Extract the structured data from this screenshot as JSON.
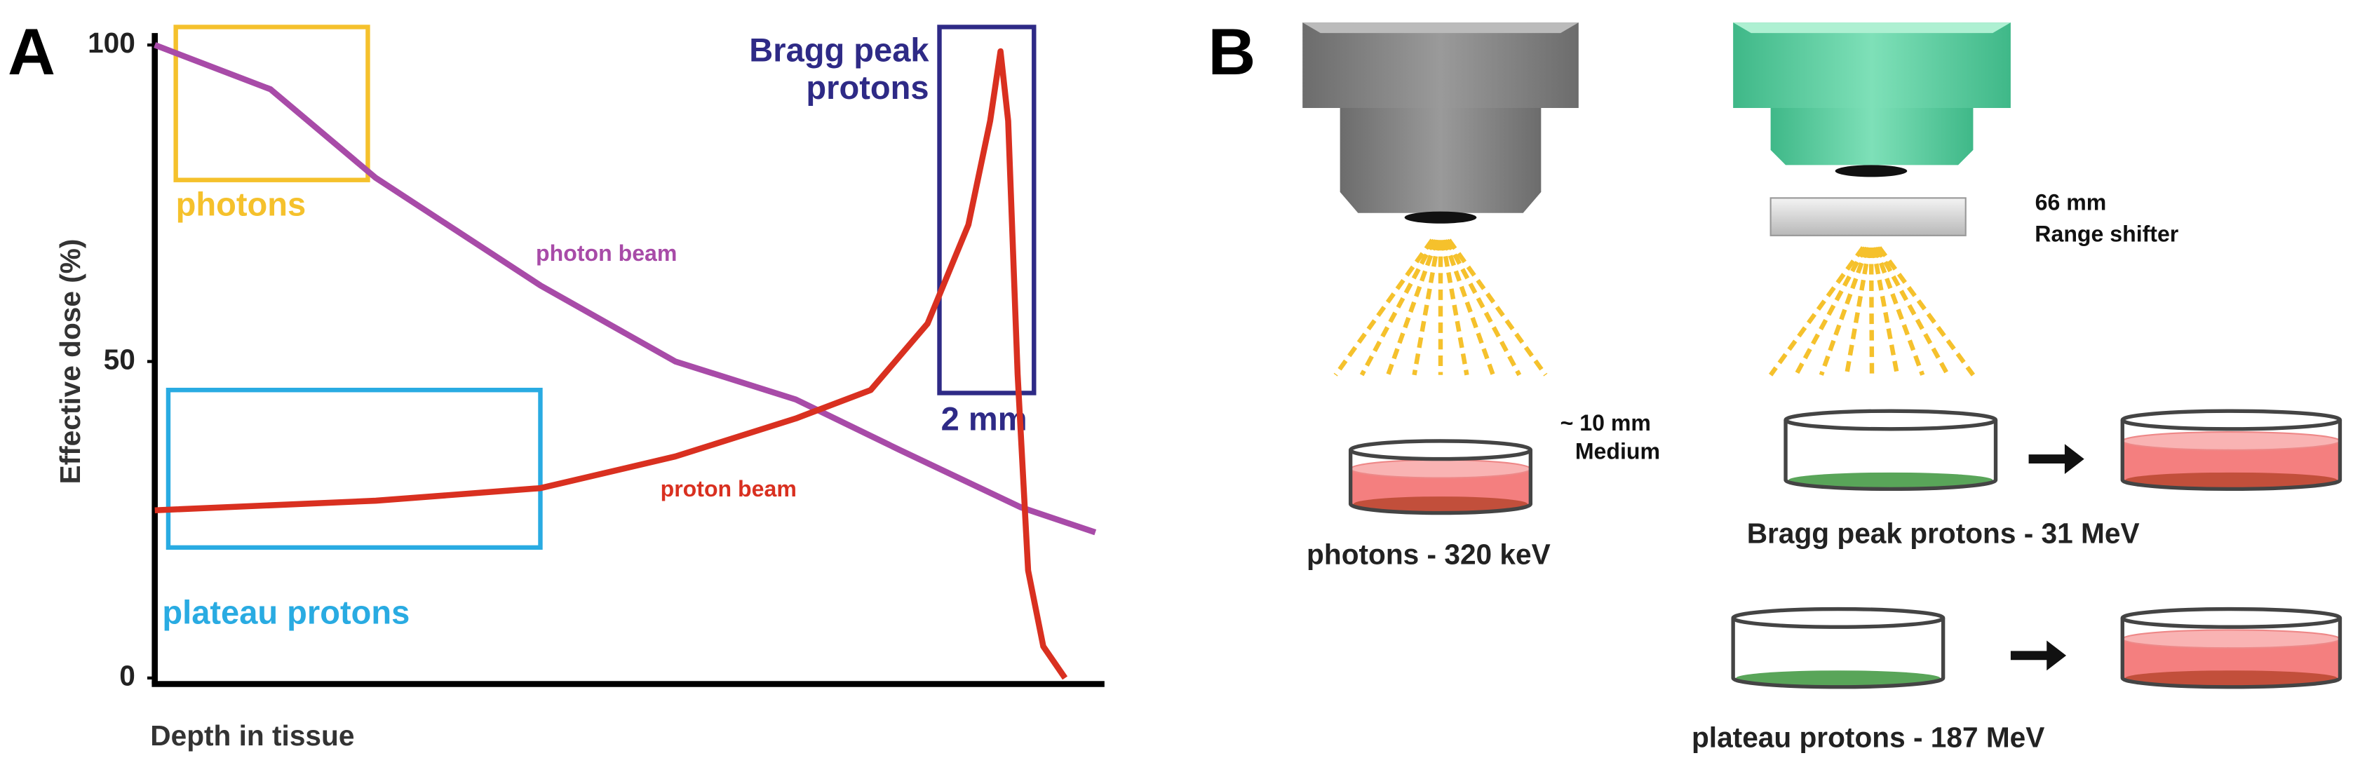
{
  "panels": {
    "a": "A",
    "b": "B"
  },
  "chart_data": {
    "type": "line",
    "ylabel": "Effective dose (%)",
    "xlabel": "Depth in tissue",
    "xlim": [
      0,
      100
    ],
    "ylim": [
      0,
      100
    ],
    "yticks": [
      0,
      50,
      100
    ],
    "series": [
      {
        "name": "photon beam",
        "color": "#a84ba8",
        "x": [
          0,
          12.2,
          23.3,
          40.7,
          54.9,
          67.6,
          78.6,
          91.3,
          99.2
        ],
        "values": [
          100,
          93,
          79,
          62,
          50,
          44,
          36,
          27,
          23
        ]
      },
      {
        "name": "proton beam",
        "color": "#d93020",
        "x": [
          0,
          23.3,
          40.7,
          54.9,
          67.6,
          75.5,
          81.5,
          85.8,
          88.1,
          89.2,
          90,
          91,
          92.1,
          93.7,
          96
        ],
        "values": [
          26.5,
          28,
          30,
          35,
          41,
          45.5,
          56,
          71.6,
          88,
          99,
          88,
          48,
          17,
          5,
          0
        ]
      }
    ],
    "annotations": {
      "photons": "photons",
      "bragg_line1": "Bragg peak",
      "bragg_line2": "protons",
      "bragg_width": "2 mm",
      "plateau": "plateau protons"
    }
  },
  "diagram": {
    "range_shifter_size": "66 mm",
    "range_shifter": "Range shifter",
    "medium_depth": "~ 10 mm",
    "medium": "Medium",
    "photons": "photons - 320 keV",
    "bragg": "Bragg peak protons - 31 MeV",
    "plateau": "plateau protons - 187 MeV"
  }
}
